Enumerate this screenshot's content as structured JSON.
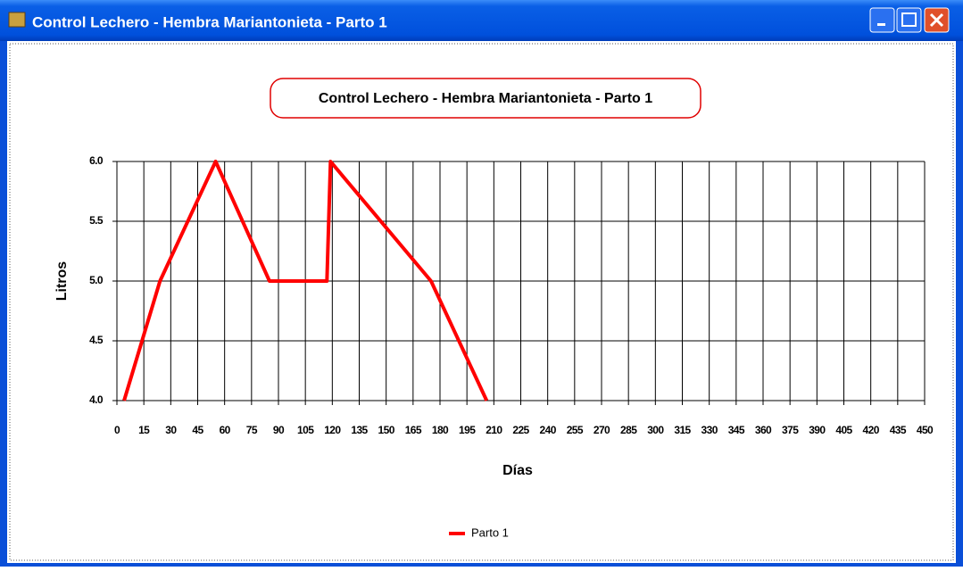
{
  "window": {
    "title": "Control Lechero - Hembra Mariantonieta - Parto 1"
  },
  "chart_data": {
    "type": "line",
    "title": "Control Lechero - Hembra Mariantonieta - Parto 1",
    "xlabel": "Días",
    "ylabel": "Litros",
    "x": [
      4,
      24,
      55,
      85,
      117,
      119,
      175,
      206
    ],
    "series": [
      {
        "name": "Parto 1",
        "color": "#ff0000",
        "values": [
          4.0,
          5.0,
          6.0,
          5.0,
          5.0,
          6.0,
          5.0,
          4.0
        ]
      }
    ],
    "xlim": [
      0,
      450
    ],
    "xticks": [
      0,
      15,
      30,
      45,
      60,
      75,
      90,
      105,
      120,
      135,
      150,
      165,
      180,
      195,
      210,
      225,
      240,
      255,
      270,
      285,
      300,
      315,
      330,
      345,
      360,
      375,
      390,
      405,
      420,
      435,
      450
    ],
    "ylim": [
      4,
      6
    ],
    "yticks": [
      {
        "value": 4,
        "label": "4.0"
      },
      {
        "value": 4.5,
        "label": "4.5"
      },
      {
        "value": 5,
        "label": "5.0"
      },
      {
        "value": 5.5,
        "label": "5.5"
      },
      {
        "value": 6,
        "label": "6.0"
      }
    ],
    "grid": true,
    "legend": "bottom"
  }
}
